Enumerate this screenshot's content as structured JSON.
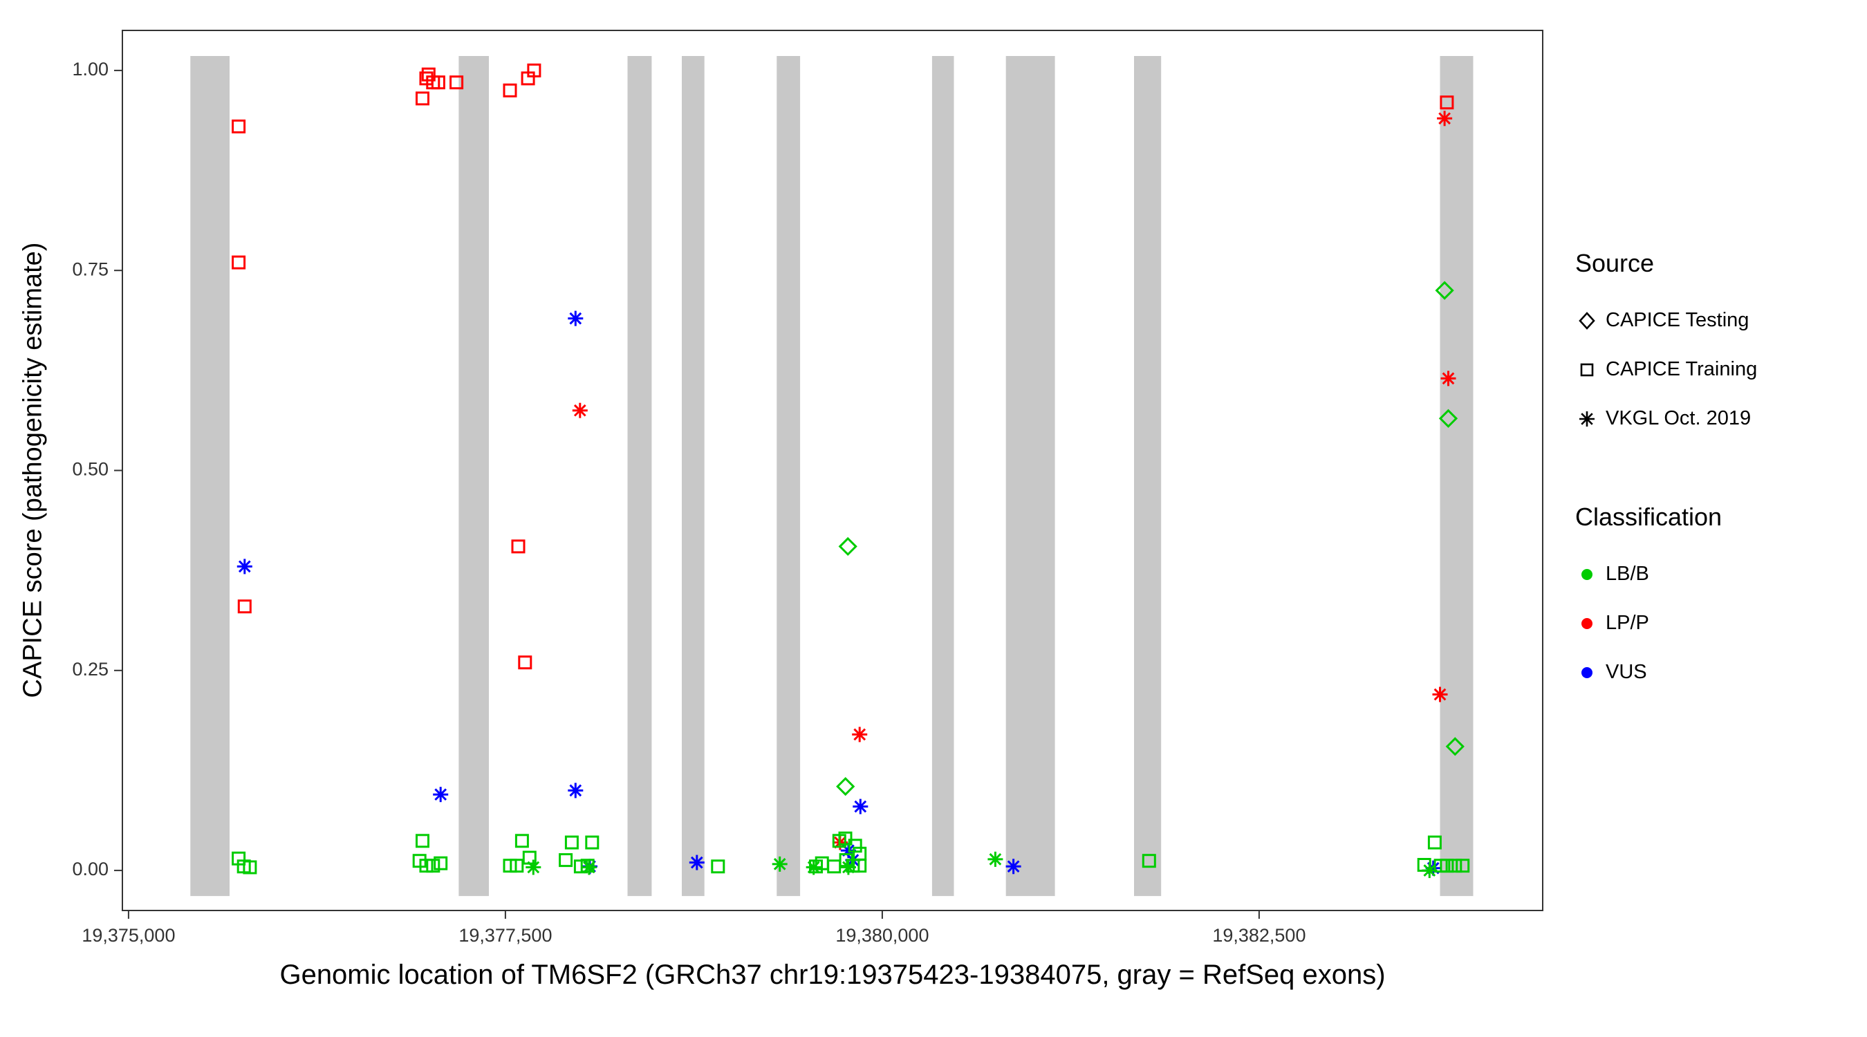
{
  "legend": {
    "source": {
      "title": "Source",
      "items": [
        {
          "label": "CAPICE Testing",
          "shape": "diamond"
        },
        {
          "label": "CAPICE Training",
          "shape": "square"
        },
        {
          "label": "VKGL Oct. 2019",
          "shape": "asterisk"
        }
      ]
    },
    "classification": {
      "title": "Classification",
      "items": [
        {
          "label": "LB/B",
          "color": "#00CC00"
        },
        {
          "label": "LP/P",
          "color": "#FF0000"
        },
        {
          "label": "VUS",
          "color": "#0000FF"
        }
      ]
    }
  },
  "chart_data": {
    "type": "scatter",
    "title": "",
    "xlabel": "Genomic location of TM6SF2 (GRCh37 chr19:19375423-19384075, gray = RefSeq exons)",
    "ylabel": "CAPICE score (pathogenicity estimate)",
    "xlim": [
      19374959,
      19384381
    ],
    "ylim": [
      -0.05,
      1.05
    ],
    "x_ticks": [
      {
        "value": 19375000,
        "label": "19,375,000"
      },
      {
        "value": 19377500,
        "label": "19,377,500"
      },
      {
        "value": 19380000,
        "label": "19,380,000"
      },
      {
        "value": 19382500,
        "label": "19,382,500"
      }
    ],
    "y_ticks": [
      {
        "value": 0.0,
        "label": "0.00"
      },
      {
        "value": 0.25,
        "label": "0.25"
      },
      {
        "value": 0.5,
        "label": "0.50"
      },
      {
        "value": 0.75,
        "label": "0.75"
      },
      {
        "value": 1.0,
        "label": "1.00"
      }
    ],
    "exon_color": "#C8C8C8",
    "exon_y_range": [
      -0.032,
      1.018
    ],
    "exons": [
      [
        19375410,
        19375670
      ],
      [
        19377190,
        19377390
      ],
      [
        19378310,
        19378470
      ],
      [
        19378670,
        19378820
      ],
      [
        19379300,
        19379455
      ],
      [
        19380330,
        19380475
      ],
      [
        19380820,
        19381145
      ],
      [
        19381670,
        19381850
      ],
      [
        19383700,
        19383920
      ]
    ],
    "shape_by_source": {
      "CAPICE Testing": "diamond",
      "CAPICE Training": "square",
      "VKGL Oct. 2019": "asterisk"
    },
    "color_by_classification": {
      "LB/B": "#00CC00",
      "LP/P": "#FF0000",
      "VUS": "#0000FF"
    },
    "points": [
      {
        "x": 19375730,
        "y": 0.93,
        "source": "CAPICE Training",
        "classification": "LP/P"
      },
      {
        "x": 19375730,
        "y": 0.76,
        "source": "CAPICE Training",
        "classification": "LP/P"
      },
      {
        "x": 19375770,
        "y": 0.33,
        "source": "CAPICE Training",
        "classification": "LP/P"
      },
      {
        "x": 19376950,
        "y": 0.965,
        "source": "CAPICE Training",
        "classification": "LP/P"
      },
      {
        "x": 19376975,
        "y": 0.99,
        "source": "CAPICE Training",
        "classification": "LP/P"
      },
      {
        "x": 19376990,
        "y": 0.995,
        "source": "CAPICE Training",
        "classification": "LP/P"
      },
      {
        "x": 19377020,
        "y": 0.985,
        "source": "CAPICE Training",
        "classification": "LP/P"
      },
      {
        "x": 19377055,
        "y": 0.985,
        "source": "CAPICE Training",
        "classification": "LP/P"
      },
      {
        "x": 19377175,
        "y": 0.985,
        "source": "CAPICE Training",
        "classification": "LP/P"
      },
      {
        "x": 19377530,
        "y": 0.975,
        "source": "CAPICE Training",
        "classification": "LP/P"
      },
      {
        "x": 19377650,
        "y": 0.99,
        "source": "CAPICE Training",
        "classification": "LP/P"
      },
      {
        "x": 19377690,
        "y": 1.0,
        "source": "CAPICE Training",
        "classification": "LP/P"
      },
      {
        "x": 19377585,
        "y": 0.405,
        "source": "CAPICE Training",
        "classification": "LP/P"
      },
      {
        "x": 19377630,
        "y": 0.26,
        "source": "CAPICE Training",
        "classification": "LP/P"
      },
      {
        "x": 19383745,
        "y": 0.96,
        "source": "CAPICE Training",
        "classification": "LP/P"
      },
      {
        "x": 19377995,
        "y": 0.575,
        "source": "VKGL Oct. 2019",
        "classification": "LP/P"
      },
      {
        "x": 19379720,
        "y": 0.035,
        "source": "VKGL Oct. 2019",
        "classification": "LP/P"
      },
      {
        "x": 19379850,
        "y": 0.17,
        "source": "VKGL Oct. 2019",
        "classification": "LP/P"
      },
      {
        "x": 19383700,
        "y": 0.22,
        "source": "VKGL Oct. 2019",
        "classification": "LP/P"
      },
      {
        "x": 19383730,
        "y": 0.94,
        "source": "VKGL Oct. 2019",
        "classification": "LP/P"
      },
      {
        "x": 19383755,
        "y": 0.615,
        "source": "VKGL Oct. 2019",
        "classification": "LP/P"
      },
      {
        "x": 19375770,
        "y": 0.38,
        "source": "VKGL Oct. 2019",
        "classification": "VUS"
      },
      {
        "x": 19377070,
        "y": 0.095,
        "source": "VKGL Oct. 2019",
        "classification": "VUS"
      },
      {
        "x": 19377965,
        "y": 0.69,
        "source": "VKGL Oct. 2019",
        "classification": "VUS"
      },
      {
        "x": 19377965,
        "y": 0.1,
        "source": "VKGL Oct. 2019",
        "classification": "VUS"
      },
      {
        "x": 19378060,
        "y": 0.005,
        "source": "VKGL Oct. 2019",
        "classification": "VUS"
      },
      {
        "x": 19378770,
        "y": 0.01,
        "source": "VKGL Oct. 2019",
        "classification": "VUS"
      },
      {
        "x": 19379775,
        "y": 0.025,
        "source": "VKGL Oct. 2019",
        "classification": "VUS"
      },
      {
        "x": 19379805,
        "y": 0.013,
        "source": "VKGL Oct. 2019",
        "classification": "VUS"
      },
      {
        "x": 19379855,
        "y": 0.08,
        "source": "VKGL Oct. 2019",
        "classification": "VUS"
      },
      {
        "x": 19380870,
        "y": 0.005,
        "source": "VKGL Oct. 2019",
        "classification": "VUS"
      },
      {
        "x": 19383655,
        "y": 0.003,
        "source": "VKGL Oct. 2019",
        "classification": "VUS"
      },
      {
        "x": 19379756,
        "y": 0.105,
        "source": "CAPICE Testing",
        "classification": "LB/B"
      },
      {
        "x": 19379772,
        "y": 0.405,
        "source": "CAPICE Testing",
        "classification": "LB/B"
      },
      {
        "x": 19383730,
        "y": 0.725,
        "source": "CAPICE Testing",
        "classification": "LB/B"
      },
      {
        "x": 19383755,
        "y": 0.565,
        "source": "CAPICE Testing",
        "classification": "LB/B"
      },
      {
        "x": 19383800,
        "y": 0.155,
        "source": "CAPICE Testing",
        "classification": "LB/B"
      },
      {
        "x": 19375730,
        "y": 0.015,
        "source": "CAPICE Training",
        "classification": "LB/B"
      },
      {
        "x": 19375765,
        "y": 0.005,
        "source": "CAPICE Training",
        "classification": "LB/B"
      },
      {
        "x": 19375805,
        "y": 0.004,
        "source": "CAPICE Training",
        "classification": "LB/B"
      },
      {
        "x": 19376930,
        "y": 0.012,
        "source": "CAPICE Training",
        "classification": "LB/B"
      },
      {
        "x": 19376950,
        "y": 0.037,
        "source": "CAPICE Training",
        "classification": "LB/B"
      },
      {
        "x": 19376975,
        "y": 0.006,
        "source": "CAPICE Training",
        "classification": "LB/B"
      },
      {
        "x": 19377020,
        "y": 0.006,
        "source": "CAPICE Training",
        "classification": "LB/B"
      },
      {
        "x": 19377070,
        "y": 0.009,
        "source": "CAPICE Training",
        "classification": "LB/B"
      },
      {
        "x": 19377530,
        "y": 0.006,
        "source": "CAPICE Training",
        "classification": "LB/B"
      },
      {
        "x": 19377575,
        "y": 0.006,
        "source": "CAPICE Training",
        "classification": "LB/B"
      },
      {
        "x": 19377610,
        "y": 0.037,
        "source": "CAPICE Training",
        "classification": "LB/B"
      },
      {
        "x": 19377660,
        "y": 0.016,
        "source": "CAPICE Training",
        "classification": "LB/B"
      },
      {
        "x": 19377900,
        "y": 0.013,
        "source": "CAPICE Training",
        "classification": "LB/B"
      },
      {
        "x": 19377940,
        "y": 0.035,
        "source": "CAPICE Training",
        "classification": "LB/B"
      },
      {
        "x": 19378000,
        "y": 0.005,
        "source": "CAPICE Training",
        "classification": "LB/B"
      },
      {
        "x": 19378045,
        "y": 0.006,
        "source": "CAPICE Training",
        "classification": "LB/B"
      },
      {
        "x": 19378075,
        "y": 0.035,
        "source": "CAPICE Training",
        "classification": "LB/B"
      },
      {
        "x": 19378910,
        "y": 0.005,
        "source": "CAPICE Training",
        "classification": "LB/B"
      },
      {
        "x": 19379560,
        "y": 0.005,
        "source": "CAPICE Training",
        "classification": "LB/B"
      },
      {
        "x": 19379600,
        "y": 0.009,
        "source": "CAPICE Training",
        "classification": "LB/B"
      },
      {
        "x": 19379680,
        "y": 0.005,
        "source": "CAPICE Training",
        "classification": "LB/B"
      },
      {
        "x": 19379715,
        "y": 0.037,
        "source": "CAPICE Training",
        "classification": "LB/B"
      },
      {
        "x": 19379755,
        "y": 0.04,
        "source": "CAPICE Training",
        "classification": "LB/B"
      },
      {
        "x": 19379760,
        "y": 0.013,
        "source": "CAPICE Training",
        "classification": "LB/B"
      },
      {
        "x": 19379805,
        "y": 0.006,
        "source": "CAPICE Training",
        "classification": "LB/B"
      },
      {
        "x": 19379820,
        "y": 0.031,
        "source": "CAPICE Training",
        "classification": "LB/B"
      },
      {
        "x": 19379850,
        "y": 0.021,
        "source": "CAPICE Training",
        "classification": "LB/B"
      },
      {
        "x": 19379850,
        "y": 0.006,
        "source": "CAPICE Training",
        "classification": "LB/B"
      },
      {
        "x": 19381770,
        "y": 0.012,
        "source": "CAPICE Training",
        "classification": "LB/B"
      },
      {
        "x": 19383595,
        "y": 0.007,
        "source": "CAPICE Training",
        "classification": "LB/B"
      },
      {
        "x": 19383665,
        "y": 0.035,
        "source": "CAPICE Training",
        "classification": "LB/B"
      },
      {
        "x": 19383705,
        "y": 0.006,
        "source": "CAPICE Training",
        "classification": "LB/B"
      },
      {
        "x": 19383745,
        "y": 0.006,
        "source": "CAPICE Training",
        "classification": "LB/B"
      },
      {
        "x": 19383800,
        "y": 0.006,
        "source": "CAPICE Training",
        "classification": "LB/B"
      },
      {
        "x": 19383850,
        "y": 0.006,
        "source": "CAPICE Training",
        "classification": "LB/B"
      },
      {
        "x": 19377685,
        "y": 0.004,
        "source": "VKGL Oct. 2019",
        "classification": "LB/B"
      },
      {
        "x": 19378055,
        "y": 0.004,
        "source": "VKGL Oct. 2019",
        "classification": "LB/B"
      },
      {
        "x": 19379320,
        "y": 0.008,
        "source": "VKGL Oct. 2019",
        "classification": "LB/B"
      },
      {
        "x": 19379545,
        "y": 0.004,
        "source": "VKGL Oct. 2019",
        "classification": "LB/B"
      },
      {
        "x": 19379775,
        "y": 0.004,
        "source": "VKGL Oct. 2019",
        "classification": "LB/B"
      },
      {
        "x": 19380750,
        "y": 0.014,
        "source": "VKGL Oct. 2019",
        "classification": "LB/B"
      },
      {
        "x": 19383630,
        "y": 0.0,
        "source": "VKGL Oct. 2019",
        "classification": "LB/B"
      }
    ]
  }
}
